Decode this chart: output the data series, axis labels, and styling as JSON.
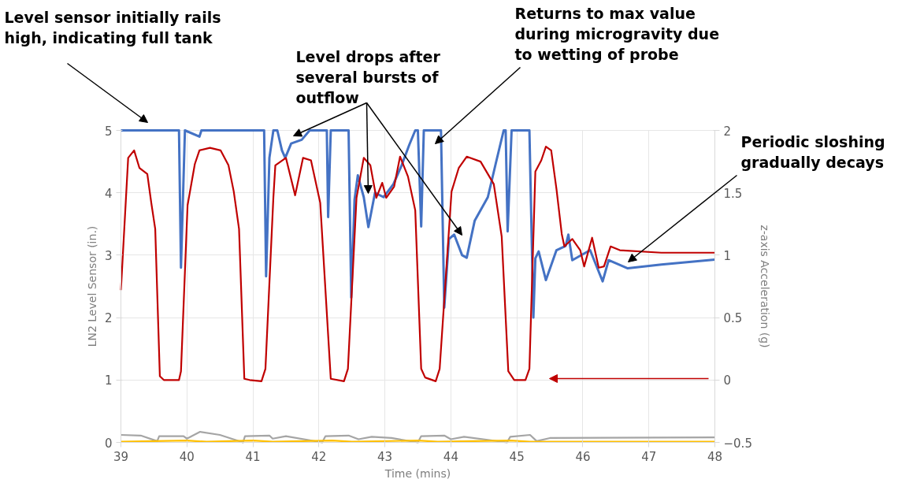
{
  "chart_data": {
    "type": "line",
    "xlabel": "Time (mins)",
    "ylabel": "LN2 Level Sensor (in.)",
    "y2label": "z-axis Acceleration (g)",
    "xlim": [
      39,
      48
    ],
    "xticks": [
      39,
      40,
      41,
      42,
      43,
      44,
      45,
      46,
      47,
      48
    ],
    "ylim": [
      0,
      5
    ],
    "yticks": [
      0,
      1,
      2,
      3,
      4,
      5
    ],
    "y2lim": [
      -0.5,
      2
    ],
    "y2ticks": [
      -0.5,
      0.5,
      0,
      1,
      1.5,
      2
    ],
    "grid": true,
    "series": [
      {
        "color": "#a5a5a5",
        "x": [
          39,
          39.3,
          39.55,
          39.58,
          39.95,
          40.0,
          40.2,
          40.5,
          40.85,
          40.88,
          41.25,
          41.3,
          41.5,
          42.05,
          42.1,
          42.45,
          42.6,
          42.8,
          43.1,
          43.5,
          43.55,
          43.9,
          44.0,
          44.2,
          44.85,
          44.9,
          45.2,
          45.3,
          45.5,
          48
        ],
        "values": [
          0.12,
          0.11,
          0.02,
          0.1,
          0.1,
          0.06,
          0.17,
          0.12,
          0.0,
          0.1,
          0.11,
          0.06,
          0.1,
          0.0,
          0.1,
          0.11,
          0.05,
          0.09,
          0.07,
          0.0,
          0.1,
          0.11,
          0.05,
          0.09,
          0.0,
          0.09,
          0.12,
          0.02,
          0.07,
          0.08
        ]
      },
      {
        "color": "#ffc000",
        "x": [
          39,
          40,
          40.3,
          41,
          41.3,
          42.2,
          42.5,
          43.5,
          43.8,
          44.9,
          45.2,
          48
        ],
        "values": [
          0.01,
          0.03,
          0.01,
          0.03,
          0.01,
          0.03,
          0.01,
          0.03,
          0.01,
          0.03,
          0.01,
          0.01
        ]
      },
      {
        "color": "#4472c4",
        "x": [
          39,
          39.88,
          39.91,
          39.97,
          40.19,
          40.22,
          41.17,
          41.2,
          41.25,
          41.31,
          41.37,
          41.44,
          41.49,
          41.58,
          41.74,
          41.86,
          42.12,
          42.14,
          42.18,
          42.45,
          42.49,
          42.54,
          42.59,
          42.68,
          42.75,
          42.85,
          42.98,
          43.13,
          43.25,
          43.37,
          43.46,
          43.5,
          43.55,
          43.59,
          43.85,
          43.9,
          43.97,
          44.05,
          44.17,
          44.24,
          44.36,
          44.56,
          44.68,
          44.8,
          44.83,
          44.86,
          44.92,
          45.19,
          45.25,
          45.28,
          45.33,
          45.44,
          45.6,
          45.74,
          45.78,
          45.84,
          46.11,
          46.3,
          46.39,
          46.68,
          47.19,
          48
        ],
        "values": [
          5,
          5,
          2.8,
          5,
          4.9,
          5,
          5,
          2.66,
          4.56,
          5,
          5,
          4.68,
          4.56,
          4.79,
          4.85,
          5,
          5,
          3.61,
          5,
          5,
          2.32,
          3.89,
          4.28,
          3.93,
          3.45,
          4.0,
          3.93,
          4.14,
          4.43,
          4.77,
          5,
          5,
          3.46,
          5,
          5,
          2.16,
          3.26,
          3.33,
          3.0,
          2.96,
          3.55,
          3.93,
          4.47,
          5,
          5,
          3.38,
          5,
          5,
          2.0,
          2.95,
          3.06,
          2.6,
          3.08,
          3.15,
          3.33,
          2.92,
          3.08,
          2.58,
          2.92,
          2.79,
          2.85,
          2.93
        ]
      },
      {
        "color": "#c00000",
        "axis": "y2",
        "x": [
          39.0,
          39.11,
          39.2,
          39.28,
          39.4,
          39.46,
          39.52,
          39.59,
          39.65,
          39.88,
          39.91,
          40.01,
          40.12,
          40.19,
          40.35,
          40.51,
          40.63,
          40.71,
          40.79,
          40.87,
          40.95,
          41.13,
          41.19,
          41.31,
          41.34,
          41.5,
          41.64,
          41.76,
          41.88,
          42.02,
          42.18,
          42.38,
          42.44,
          42.57,
          42.68,
          42.78,
          42.87,
          42.96,
          43.02,
          43.14,
          43.23,
          43.35,
          43.46,
          43.55,
          43.61,
          43.77,
          43.83,
          44.01,
          44.12,
          44.24,
          44.45,
          44.65,
          44.77,
          44.87,
          44.96,
          45.13,
          45.19,
          45.28,
          45.37,
          45.44,
          45.52,
          45.6,
          45.68,
          45.72,
          45.84,
          45.96,
          46.02,
          46.14,
          46.24,
          46.32,
          46.42,
          46.56,
          47.19,
          48
        ],
        "values": [
          0.72,
          1.78,
          1.84,
          1.7,
          1.65,
          1.42,
          1.21,
          0.03,
          0.0,
          0.0,
          0.07,
          1.4,
          1.73,
          1.84,
          1.86,
          1.84,
          1.72,
          1.51,
          1.21,
          0.01,
          0.0,
          -0.01,
          0.09,
          1.46,
          1.72,
          1.78,
          1.48,
          1.78,
          1.76,
          1.42,
          0.01,
          -0.01,
          0.09,
          1.46,
          1.78,
          1.72,
          1.46,
          1.58,
          1.46,
          1.55,
          1.79,
          1.63,
          1.36,
          0.09,
          0.02,
          -0.01,
          0.09,
          1.51,
          1.7,
          1.79,
          1.75,
          1.57,
          1.15,
          0.07,
          0.0,
          0.0,
          0.09,
          1.67,
          1.76,
          1.87,
          1.84,
          1.53,
          1.17,
          1.07,
          1.13,
          1.04,
          0.91,
          1.14,
          0.9,
          0.91,
          1.07,
          1.04,
          1.02,
          1.02
        ]
      }
    ],
    "annotations": [
      "Level sensor initially rails high, indicating full tank",
      "Level drops after several bursts of outflow",
      "Returns to max value during microgravity due to wetting of probe",
      "Periodic sloshing gradually decays"
    ]
  }
}
